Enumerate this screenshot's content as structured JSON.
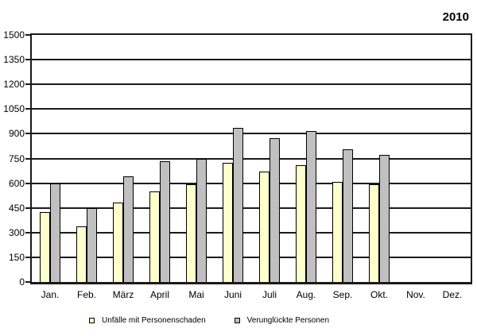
{
  "title": "2010",
  "chart_data": {
    "type": "bar",
    "title": "2010",
    "categories": [
      "Jan.",
      "Feb.",
      "März",
      "April",
      "Mai",
      "Juni",
      "Juli",
      "Aug.",
      "Sep.",
      "Okt.",
      "Nov.",
      "Dez."
    ],
    "series": [
      {
        "name": "Unfälle mit Personenschaden",
        "color": "#FFFFCC",
        "values": [
          425,
          340,
          480,
          550,
          595,
          725,
          670,
          710,
          610,
          595,
          null,
          null
        ]
      },
      {
        "name": "Verunglückte Personen",
        "color": "#C0C0C0",
        "values": [
          600,
          450,
          640,
          735,
          750,
          935,
          875,
          915,
          805,
          770,
          null,
          null
        ]
      }
    ],
    "xlabel": "",
    "ylabel": "",
    "ylim": [
      0,
      1500
    ],
    "ytick_step": 150,
    "yticks": [
      "0",
      "150",
      "300",
      "450",
      "600",
      "750",
      "900",
      "1050",
      "1200",
      "1350",
      "1500"
    ],
    "grid": "horizontal",
    "legend_position": "bottom",
    "axis_color": "#1a1a1a",
    "bar_border_color": "#000000"
  }
}
